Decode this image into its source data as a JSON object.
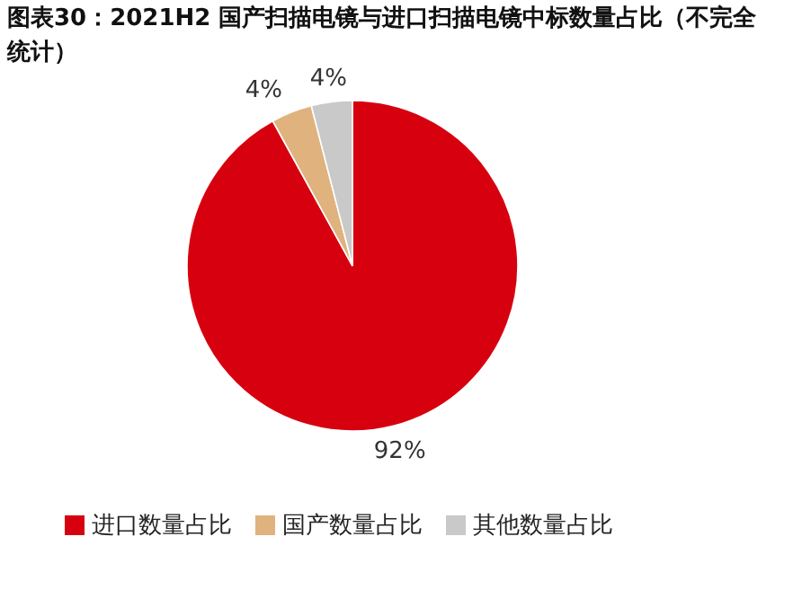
{
  "chart_data": {
    "type": "pie",
    "title": "图表30：2021H2 国产扫描电镜与进口扫描电镜中标数量占比（不完全统计）",
    "categories": [
      "进口数量占比",
      "国产数量占比",
      "其他数量占比"
    ],
    "values": [
      92,
      4,
      4
    ],
    "value_labels": [
      "92%",
      "4%",
      "4%"
    ],
    "colors": [
      "#d7000f",
      "#e0b27e",
      "#c9c9c9"
    ],
    "legend": "bottom"
  }
}
